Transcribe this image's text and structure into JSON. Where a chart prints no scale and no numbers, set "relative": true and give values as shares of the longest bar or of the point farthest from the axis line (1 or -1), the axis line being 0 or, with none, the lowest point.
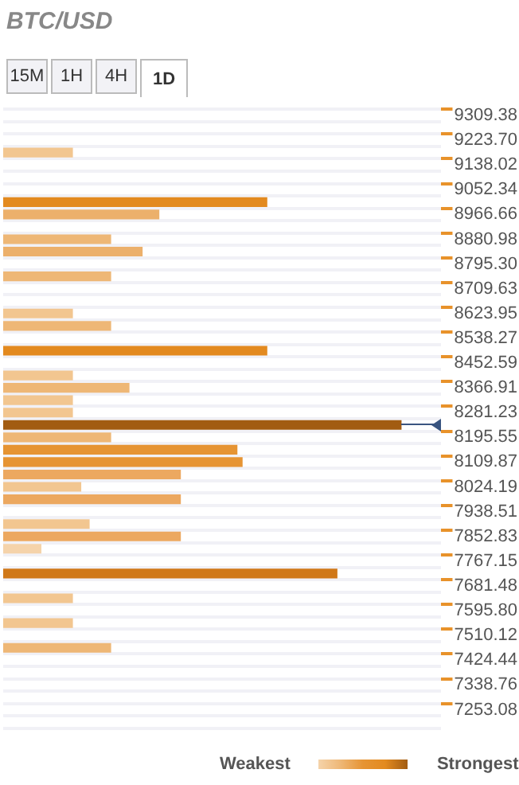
{
  "chart_data": {
    "type": "bar",
    "orientation": "horizontal",
    "relative": true,
    "title": "BTC/USD",
    "grid": "y",
    "annotations": [
      "15M",
      "1H",
      "4H",
      "1D",
      "Weakest",
      "Strongest"
    ],
    "categories": [
      "9309.38",
      null,
      "9223.70",
      null,
      "9138.02",
      null,
      "9052.34",
      null,
      "8966.66",
      null,
      "8880.98",
      null,
      "8795.30",
      null,
      "8709.63",
      null,
      "8623.95",
      null,
      "8538.27",
      null,
      "8452.59",
      null,
      "8366.91",
      null,
      "8281.23",
      null,
      "8195.55",
      null,
      "8109.87",
      null,
      "8024.19",
      null,
      "7938.51",
      null,
      "7852.83",
      null,
      "7767.15",
      null,
      "7681.48",
      null,
      "7595.80",
      null,
      "7510.12",
      null,
      "7424.44",
      null,
      "7338.76",
      null,
      "7253.08",
      null
    ],
    "values": [
      null,
      null,
      null,
      0.175,
      null,
      null,
      null,
      0.663,
      0.392,
      null,
      0.271,
      0.35,
      null,
      0.271,
      null,
      null,
      0.175,
      0.271,
      null,
      0.663,
      null,
      0.175,
      0.317,
      0.175,
      0.175,
      1,
      0.271,
      0.588,
      0.601,
      0.446,
      0.196,
      0.446,
      null,
      0.217,
      0.446,
      0.096,
      null,
      0.839,
      null,
      0.175,
      null,
      0.175,
      null,
      0.271,
      null,
      null,
      null,
      null,
      null,
      null
    ],
    "colors": [
      null,
      null,
      null,
      "#f2c690",
      null,
      null,
      null,
      "#e38a1f",
      "#ecb06b",
      null,
      "#eeb776",
      "#ecb06b",
      null,
      "#eeb776",
      null,
      null,
      "#f2c690",
      "#eeb776",
      null,
      "#e38a1f",
      null,
      "#f2c690",
      "#eeb776",
      "#f2c690",
      "#f2c690",
      "#a25c12",
      "#eeb776",
      "#e69433",
      "#e69433",
      "#eca860",
      "#f2c690",
      "#eca860",
      null,
      "#f2c690",
      "#eca860",
      "#f5d3aa",
      null,
      "#d07818",
      null,
      "#f2c690",
      null,
      "#f2c690",
      null,
      "#eeb776",
      null,
      null,
      null,
      null,
      null,
      null
    ]
  }
}
